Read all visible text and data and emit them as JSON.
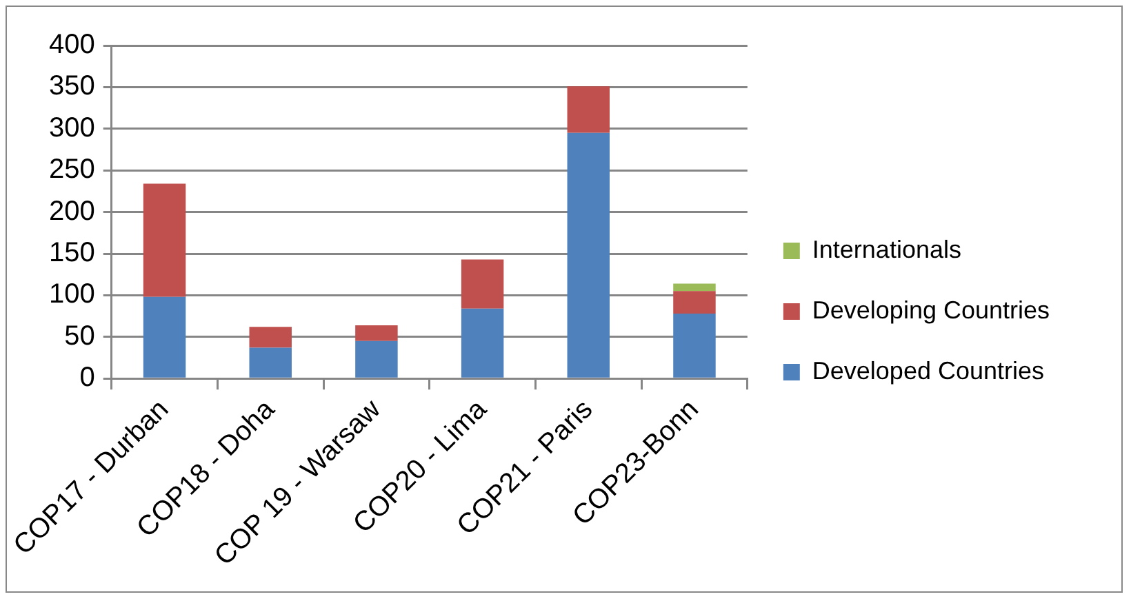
{
  "chart_data": {
    "type": "bar",
    "stacked": true,
    "categories": [
      "COP17 - Durban",
      "COP18 - Doha",
      "COP 19 - Warsaw",
      "COP20 - Lima",
      "COP21 - Paris",
      "COP23-Bonn"
    ],
    "series": [
      {
        "name": "Developed Countries",
        "color": "#4f81bd",
        "values": [
          98,
          37,
          45,
          84,
          295,
          78
        ]
      },
      {
        "name": "Developing Countries",
        "color": "#c0504d",
        "values": [
          136,
          25,
          19,
          59,
          56,
          27
        ]
      },
      {
        "name": "Internationals",
        "color": "#9bbb59",
        "values": [
          0,
          0,
          0,
          0,
          0,
          9
        ]
      }
    ],
    "ylim": [
      0,
      400
    ],
    "yticks": [
      0,
      50,
      100,
      150,
      200,
      250,
      300,
      350,
      400
    ],
    "grid": "y",
    "legend": "right"
  }
}
